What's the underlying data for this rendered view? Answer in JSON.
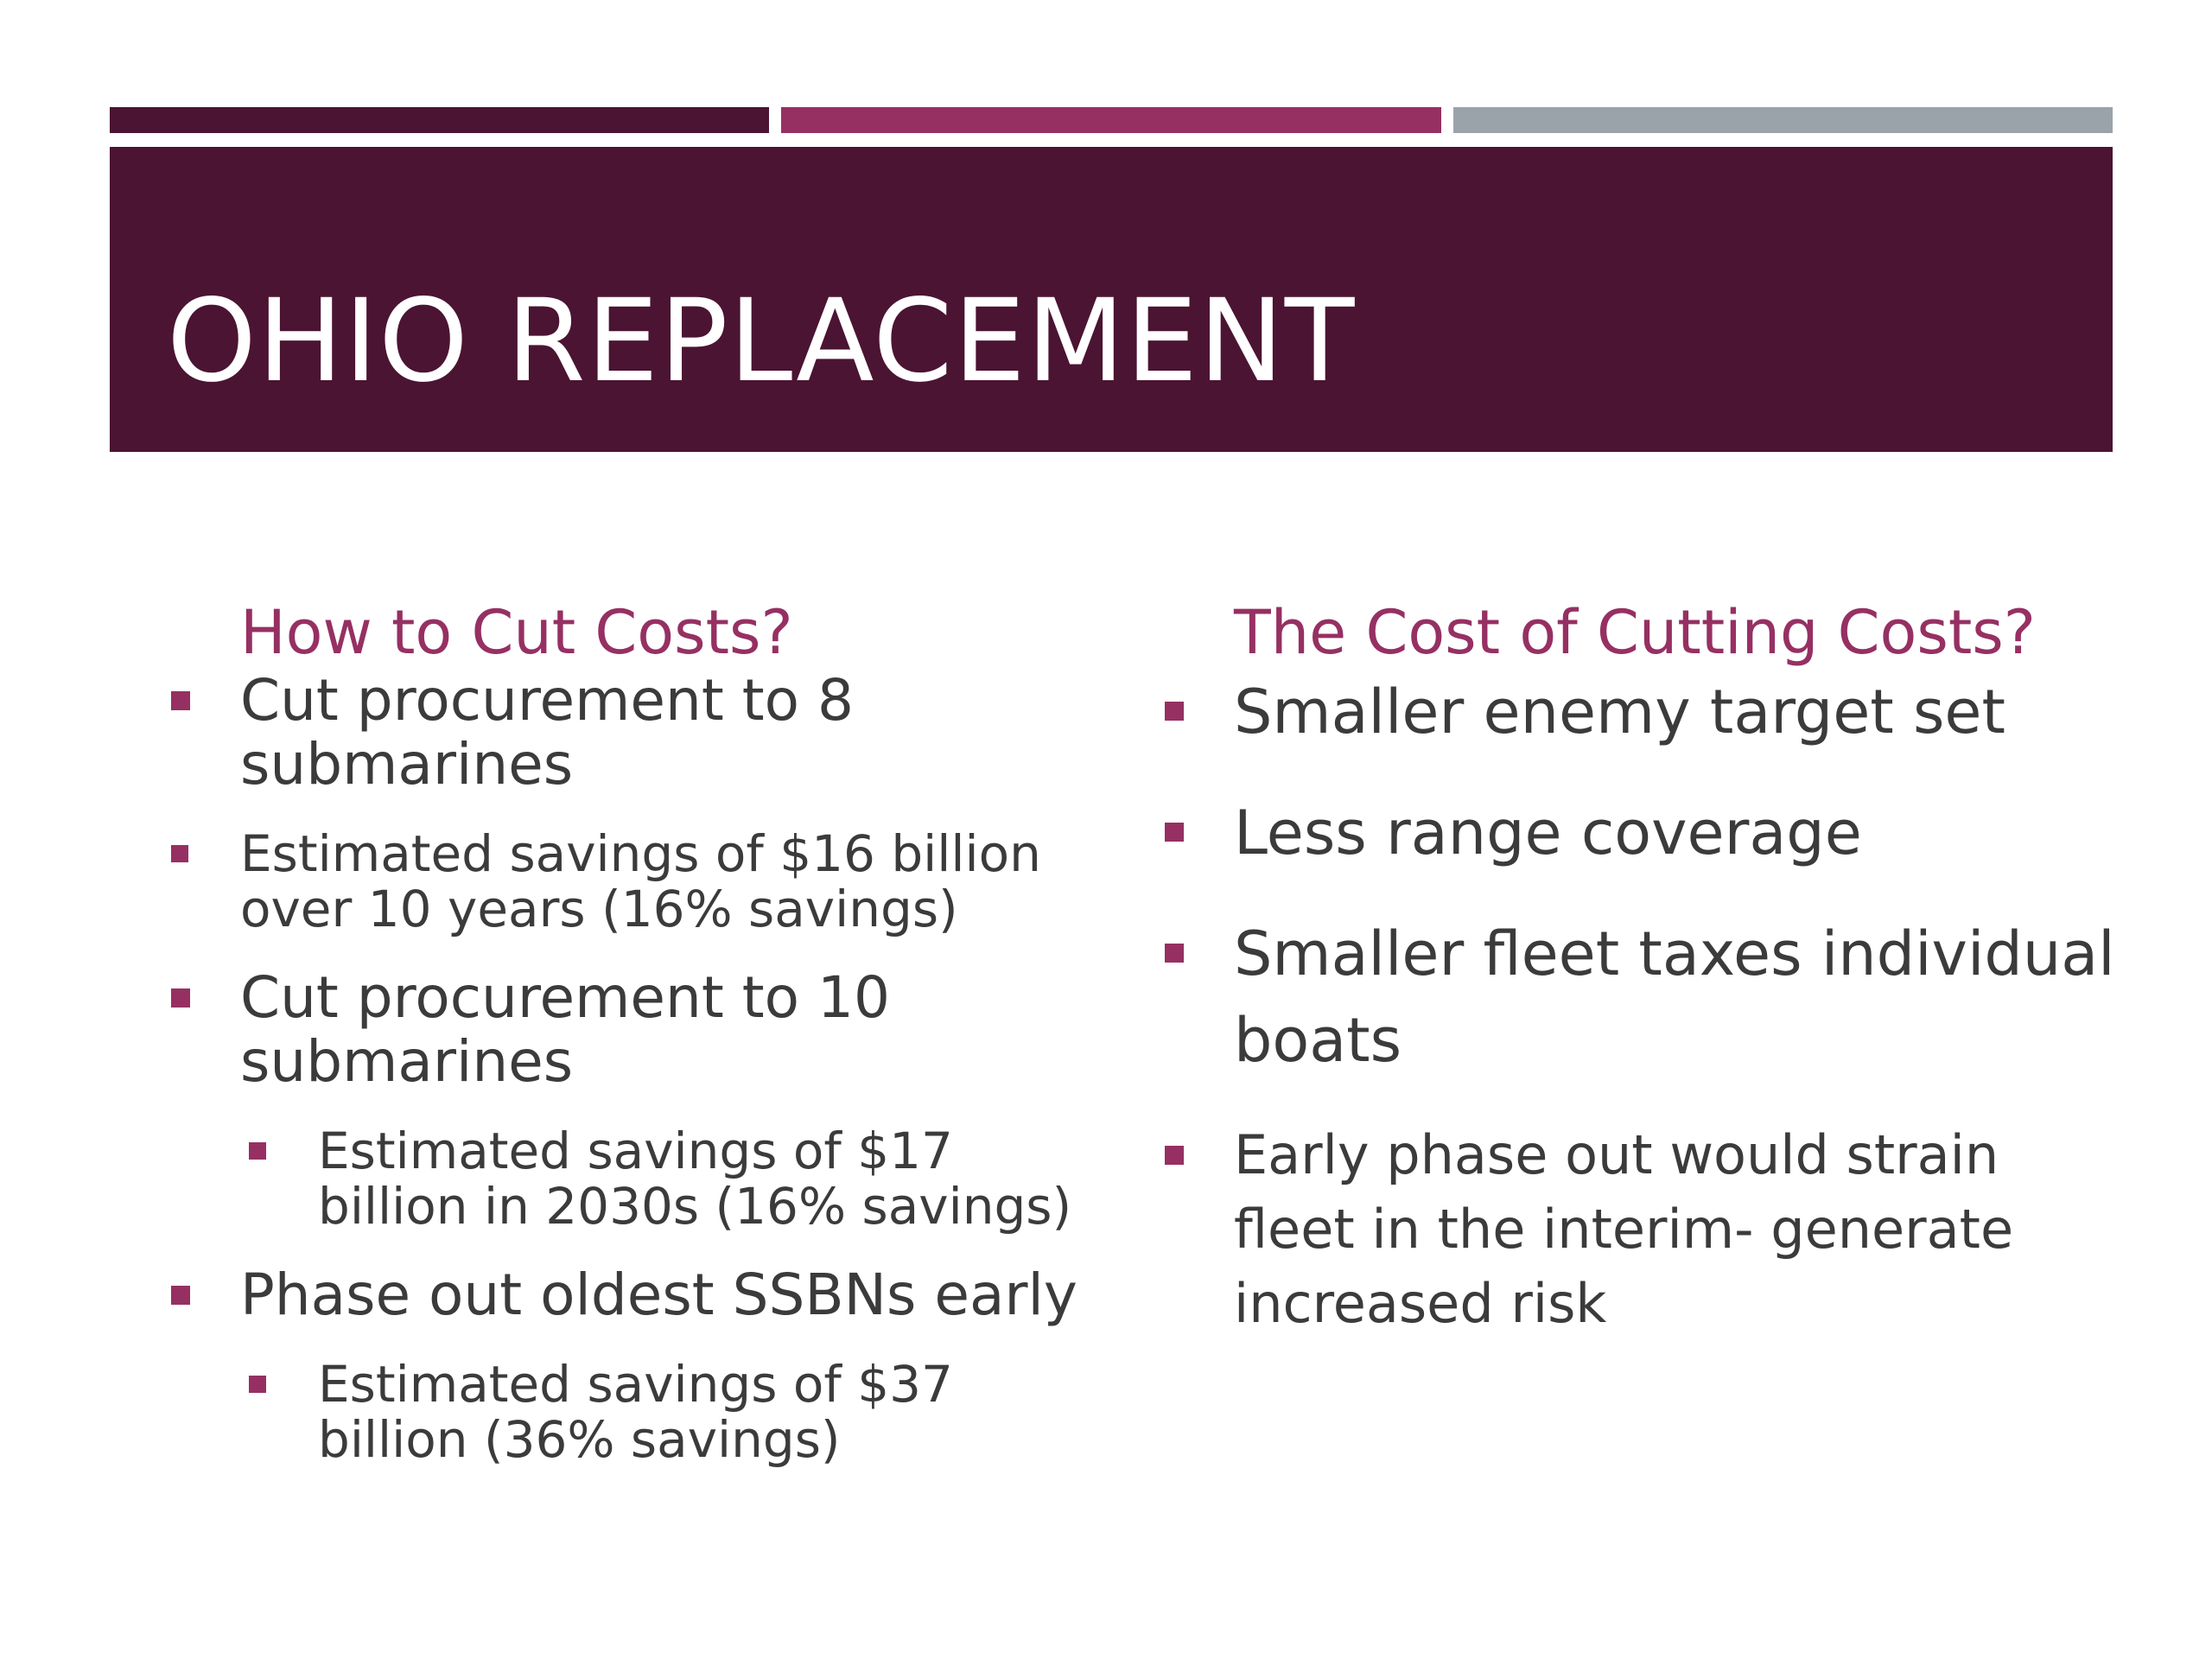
{
  "colors": {
    "bar_dark": "#4b1432",
    "bar_mid": "#963063",
    "bar_light": "#9aa3a9",
    "title_band": "#4b1432",
    "accent": "#963063",
    "body_text": "#3b3b3b"
  },
  "slide": {
    "title": "OHIO REPLACEMENT"
  },
  "left": {
    "heading": "How to Cut Costs?",
    "items": [
      {
        "text": "Cut procurement to 8 submarines",
        "level": 1
      },
      {
        "text": "Estimated savings of $16 billion over 10 years (16% savings)",
        "level": 1
      },
      {
        "text": "Cut procurement to 10 submarines",
        "level": 1
      },
      {
        "text": "Estimated savings of $17 billion in 2030s (16% savings)",
        "level": 2
      },
      {
        "text": "Phase out oldest SSBNs early",
        "level": 1
      },
      {
        "text": "Estimated savings of $37 billion (36% savings)",
        "level": 2
      }
    ]
  },
  "right": {
    "heading": "The Cost of Cutting Costs?",
    "items": [
      {
        "text": "Smaller enemy target set"
      },
      {
        "text": "Less range coverage"
      },
      {
        "text": "Smaller fleet taxes individual boats"
      },
      {
        "text": "Early phase out would strain fleet in the interim- generate increased risk"
      }
    ]
  }
}
